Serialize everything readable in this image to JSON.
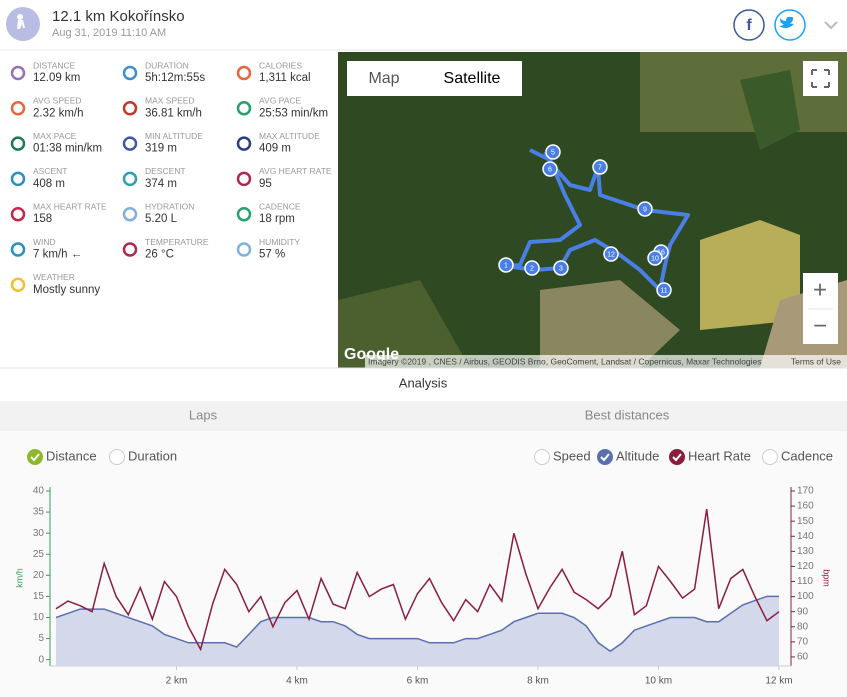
{
  "header": {
    "title": "12.1 km Kokořínsko",
    "date": "Aug 31, 2019 11:10 AM",
    "share": [
      "f"
    ]
  },
  "stats": [
    {
      "label": "DISTANCE",
      "value": "12.09 km",
      "color": "#9b6fb5"
    },
    {
      "label": "DURATION",
      "value": "5h:12m:55s",
      "color": "#3d8fd1"
    },
    {
      "label": "CALORIES",
      "value": "1,311 kcal",
      "color": "#e8663a"
    },
    {
      "label": "AVG SPEED",
      "value": "2.32 km/h",
      "color": "#e8663a"
    },
    {
      "label": "MAX SPEED",
      "value": "36.81 km/h",
      "color": "#c0392b"
    },
    {
      "label": "AVG PACE",
      "value": "25:53 min/km",
      "color": "#27a06a"
    },
    {
      "label": "MAX PACE",
      "value": "01:38 min/km",
      "color": "#1d7a4d"
    },
    {
      "label": "MIN ALTITUDE",
      "value": "319 m",
      "color": "#3d5aa8"
    },
    {
      "label": "MAX ALTITUDE",
      "value": "409 m",
      "color": "#2c3f86"
    },
    {
      "label": "ASCENT",
      "value": "408 m",
      "color": "#2a8fc4"
    },
    {
      "label": "DESCENT",
      "value": "374 m",
      "color": "#2aa0b0"
    },
    {
      "label": "AVG HEART RATE",
      "value": "95",
      "color": "#b0284d"
    },
    {
      "label": "MAX HEART RATE",
      "value": "158",
      "color": "#c0284d"
    },
    {
      "label": "HYDRATION",
      "value": "5.20 L",
      "color": "#7fb0e0"
    },
    {
      "label": "CADENCE",
      "value": "18 rpm",
      "color": "#27a06a"
    },
    {
      "label": "WIND",
      "value": "7 km/h ←",
      "color": "#2a8fc4"
    },
    {
      "label": "TEMPERATURE",
      "value": "26 °C",
      "color": "#b0284d"
    },
    {
      "label": "HUMIDITY",
      "value": "57 %",
      "color": "#7fb0e0"
    },
    {
      "label": "WEATHER",
      "value": "Mostly sunny",
      "color": "#f0c030"
    }
  ],
  "map": {
    "tabs": [
      "Map",
      "Satellite"
    ],
    "zoom": [
      "+",
      "−"
    ],
    "logo": "Google",
    "attribution": "Imagery ©2019 , CNES / Airbus, GEODIS Brno, GeoComent, Landsat / Copernicus, Maxar Technologies",
    "terms": "Terms of Use",
    "markers": [
      "5",
      "6",
      "7",
      "9",
      "1",
      "2",
      "3",
      "12",
      "16",
      "11",
      "10"
    ]
  },
  "analysis": {
    "title": "Analysis",
    "tabs": [
      "Laps",
      "Best distances"
    ]
  },
  "toggles": [
    {
      "label": "Distance",
      "checked": true,
      "color": "#8db82b"
    },
    {
      "label": "Duration",
      "checked": false,
      "color": "#8db82b"
    },
    {
      "label": "Speed",
      "checked": false,
      "color": "#5b6fb0"
    },
    {
      "label": "Altitude",
      "checked": true,
      "color": "#5b6fb0"
    },
    {
      "label": "Heart Rate",
      "checked": true,
      "color": "#8b1d3f"
    },
    {
      "label": "Cadence",
      "checked": false,
      "color": "#5b6fb0"
    }
  ],
  "chart_data": {
    "type": "line",
    "ylabel": "km/h",
    "y2label": "bpm",
    "x": [
      0,
      0.2,
      0.4,
      0.6,
      0.8,
      1,
      1.2,
      1.4,
      1.6,
      1.8,
      2,
      2.2,
      2.4,
      2.6,
      2.8,
      3,
      3.2,
      3.4,
      3.6,
      3.8,
      4,
      4.2,
      4.4,
      4.6,
      4.8,
      5,
      5.2,
      5.4,
      5.6,
      5.8,
      6,
      6.2,
      6.4,
      6.6,
      6.8,
      7,
      7.2,
      7.4,
      7.6,
      7.8,
      8,
      8.2,
      8.4,
      8.6,
      8.8,
      9,
      9.2,
      9.4,
      9.6,
      9.8,
      10,
      10.2,
      10.4,
      10.6,
      10.8,
      11,
      11.2,
      11.4,
      11.6,
      11.8,
      12
    ],
    "series": [
      {
        "name": "Altitude",
        "color": "#5b6fb0",
        "fill": "#d3d8ea",
        "axis": "y",
        "values": [
          10,
          11,
          12,
          12,
          12,
          11,
          10,
          9,
          8,
          6,
          5,
          4,
          4,
          4,
          4,
          3,
          6,
          9,
          10,
          10,
          10,
          10,
          9,
          9,
          8,
          6,
          5,
          5,
          5,
          5,
          5,
          4,
          4,
          4,
          5,
          5,
          6,
          7,
          9,
          10,
          11,
          11,
          11,
          10,
          8,
          4,
          2,
          4,
          7,
          8,
          9,
          10,
          10,
          10,
          9,
          9,
          11,
          13,
          14,
          15,
          15
        ]
      },
      {
        "name": "Heart Rate",
        "color": "#8b1d3f",
        "axis": "y2",
        "values": [
          92,
          97,
          94,
          90,
          122,
          100,
          88,
          106,
          85,
          110,
          100,
          80,
          65,
          95,
          118,
          108,
          90,
          100,
          80,
          96,
          104,
          85,
          112,
          95,
          92,
          116,
          100,
          105,
          108,
          85,
          102,
          112,
          96,
          84,
          98,
          90,
          108,
          97,
          142,
          115,
          92,
          106,
          118,
          103,
          98,
          92,
          100,
          130,
          88,
          94,
          120,
          110,
          99,
          105,
          158,
          92,
          112,
          118,
          100,
          84,
          90
        ]
      }
    ],
    "xlim": [
      0,
      12.1
    ],
    "ylim": [
      -1.5,
      40
    ],
    "y2lim": [
      54,
      170
    ],
    "xticks": [
      {
        "value": 2,
        "label": "2 km"
      },
      {
        "value": 4,
        "label": "4 km"
      },
      {
        "value": 6,
        "label": "6 km"
      },
      {
        "value": 8,
        "label": "8 km"
      },
      {
        "value": 10,
        "label": "10 km"
      },
      {
        "value": 12,
        "label": "12 km"
      }
    ],
    "yticks": [
      0,
      5,
      10,
      15,
      20,
      25,
      30,
      35,
      40
    ],
    "y2ticks": [
      60,
      70,
      80,
      90,
      100,
      110,
      120,
      130,
      140,
      150,
      160,
      170
    ]
  }
}
